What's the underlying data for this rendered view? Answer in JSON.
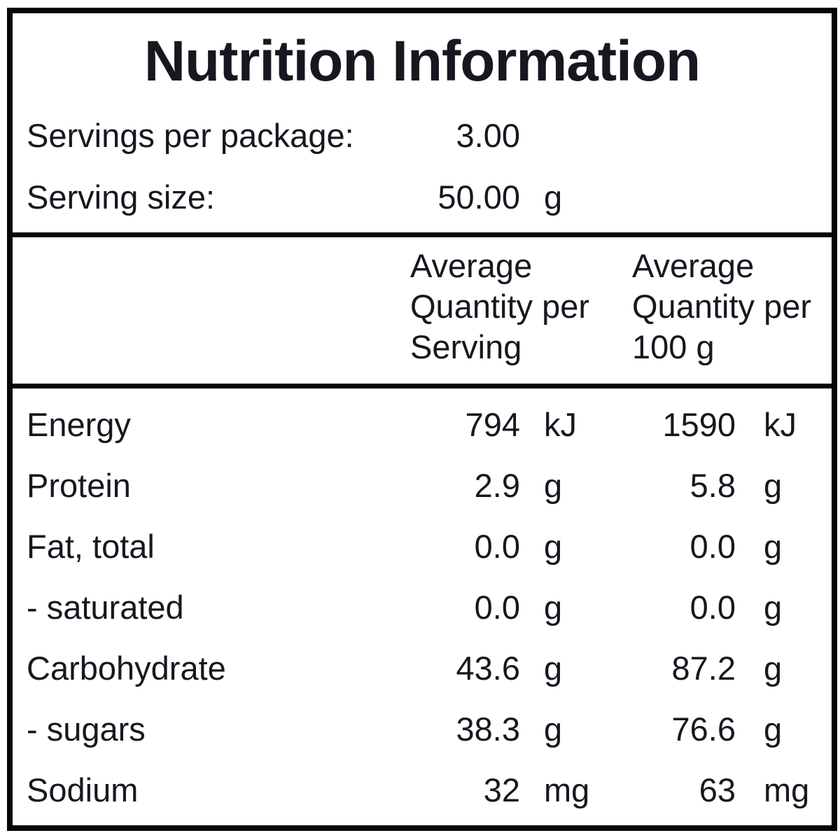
{
  "title": "Nutrition Information",
  "servings_info": [
    {
      "label": "Servings per package:",
      "value": "3.00",
      "unit": ""
    },
    {
      "label": "Serving size:",
      "value": "50.00",
      "unit": "g"
    }
  ],
  "table": {
    "header": {
      "col_serving": [
        "Average",
        "Quantity per",
        "Serving"
      ],
      "col_100g": [
        "Average",
        "Quantity per",
        "100 g"
      ]
    },
    "rows": [
      {
        "name": "Energy",
        "per_serving": "794",
        "unit_serving": "kJ",
        "per_100g": "1590",
        "unit_100g": "kJ"
      },
      {
        "name": "Protein",
        "per_serving": "2.9",
        "unit_serving": "g",
        "per_100g": "5.8",
        "unit_100g": "g"
      },
      {
        "name": "Fat, total",
        "per_serving": "0.0",
        "unit_serving": "g",
        "per_100g": "0.0",
        "unit_100g": "g"
      },
      {
        "name": "- saturated",
        "per_serving": "0.0",
        "unit_serving": "g",
        "per_100g": "0.0",
        "unit_100g": "g"
      },
      {
        "name": "Carbohydrate",
        "per_serving": "43.6",
        "unit_serving": "g",
        "per_100g": "87.2",
        "unit_100g": "g"
      },
      {
        "name": "- sugars",
        "per_serving": "38.3",
        "unit_serving": "g",
        "per_100g": "76.6",
        "unit_100g": "g"
      },
      {
        "name": "Sodium",
        "per_serving": "32",
        "unit_serving": "mg",
        "per_100g": "63",
        "unit_100g": "mg"
      }
    ]
  },
  "colors": {
    "text": "#17171f",
    "border": "#060606",
    "background": "#ffffff"
  }
}
